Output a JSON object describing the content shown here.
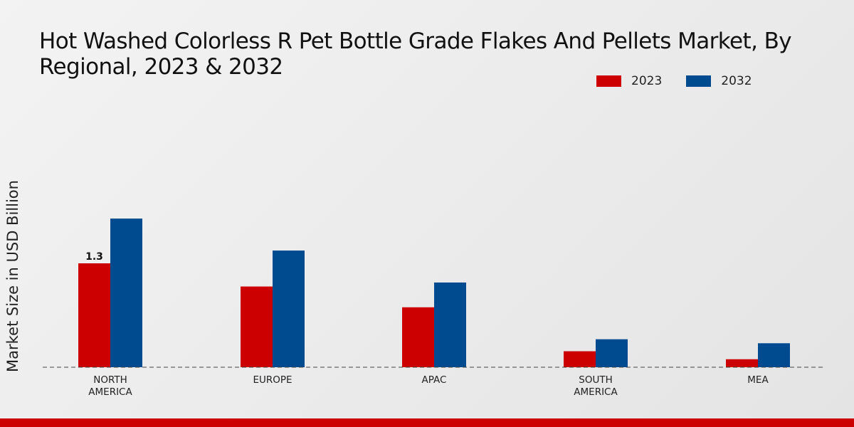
{
  "chart_data": {
    "type": "bar",
    "title": "Hot Washed Colorless R Pet Bottle Grade Flakes And Pellets Market, By Regional, 2023 & 2032",
    "xlabel": "",
    "ylabel": "Market Size in USD Billion",
    "categories": [
      "NORTH\nAMERICA",
      "EUROPE",
      "APAC",
      "SOUTH\nAMERICA",
      "MEA"
    ],
    "series": [
      {
        "name": "2023",
        "color": "#cc0000",
        "values": [
          1.3,
          1.01,
          0.75,
          0.2,
          0.1
        ]
      },
      {
        "name": "2032",
        "color": "#004a8f",
        "values": [
          1.86,
          1.46,
          1.06,
          0.35,
          0.3
        ]
      }
    ],
    "data_labels": [
      {
        "series": "2023",
        "category": "NORTH\nAMERICA",
        "text": "1.3"
      }
    ],
    "ylim": [
      0,
      2.1
    ],
    "grid": false,
    "legend": "top-right"
  }
}
